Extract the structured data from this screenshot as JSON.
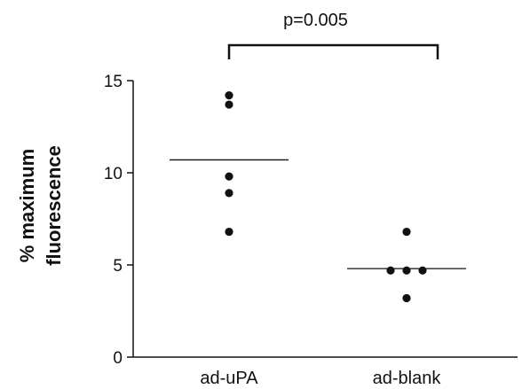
{
  "chart_data": {
    "type": "scatter",
    "title": "",
    "xlabel": "",
    "ylabel": [
      "% maximum",
      "fluorescence"
    ],
    "ylim": [
      0,
      15
    ],
    "yticks": [
      0,
      5,
      10,
      15
    ],
    "categories": [
      "ad-uPA",
      "ad-blank"
    ],
    "series": [
      {
        "category": "ad-uPA",
        "values": [
          14.2,
          13.7,
          9.8,
          8.9,
          6.8
        ],
        "mean": 10.7
      },
      {
        "category": "ad-blank",
        "values": [
          6.8,
          4.7,
          4.7,
          4.7,
          3.2
        ],
        "mean": 4.8
      }
    ],
    "annotation": {
      "text": "p=0.005",
      "between": [
        "ad-uPA",
        "ad-blank"
      ]
    },
    "colors": {
      "points": "#111111",
      "lines": "#111111"
    },
    "grid": false
  }
}
